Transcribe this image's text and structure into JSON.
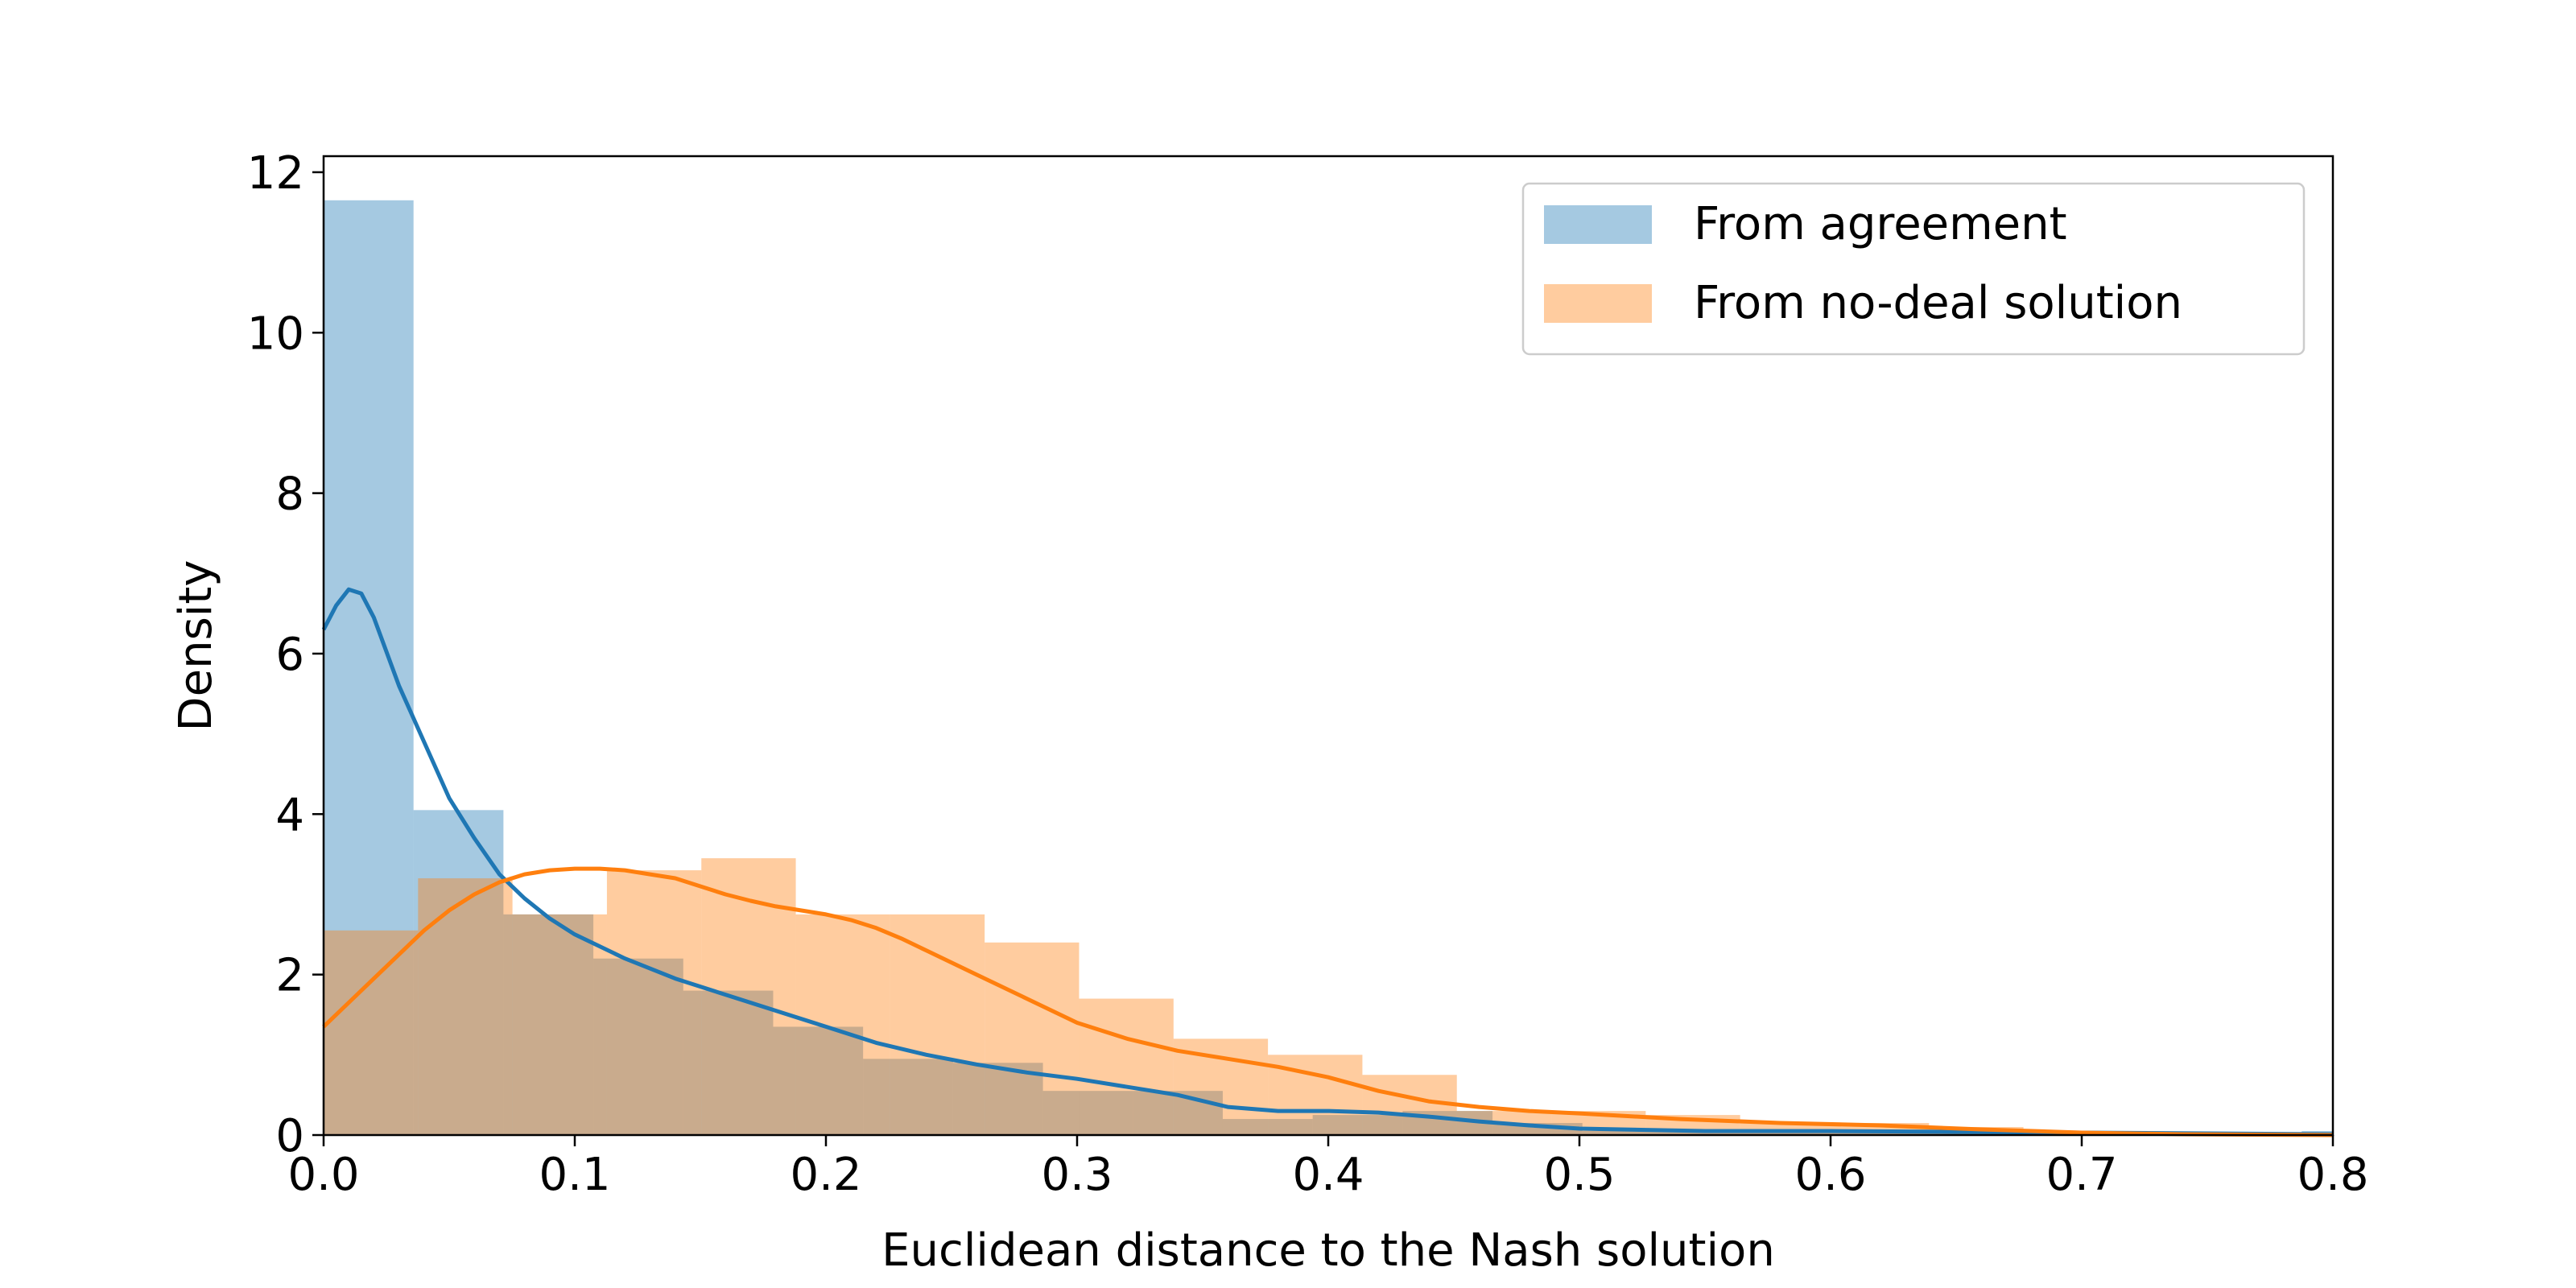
{
  "chart_data": {
    "type": "histogram+kde",
    "title": "",
    "xlabel": "Euclidean distance to the Nash solution",
    "ylabel": "Density",
    "xlim": [
      0,
      0.8
    ],
    "ylim": [
      0,
      12.2
    ],
    "xticks": [
      "0.0",
      "0.1",
      "0.2",
      "0.3",
      "0.4",
      "0.5",
      "0.6",
      "0.7",
      "0.8"
    ],
    "yticks": [
      "0",
      "2",
      "4",
      "6",
      "8",
      "10",
      "12"
    ],
    "legend_position": "top-right",
    "series": [
      {
        "name": "From agreement",
        "color": "#1f77b4",
        "bin_width": 0.0358,
        "bins": [
          {
            "x0": 0.0,
            "density": 11.65
          },
          {
            "x0": 0.0358,
            "density": 4.05
          },
          {
            "x0": 0.0716,
            "density": 2.75
          },
          {
            "x0": 0.1074,
            "density": 2.2
          },
          {
            "x0": 0.1432,
            "density": 1.8
          },
          {
            "x0": 0.179,
            "density": 1.35
          },
          {
            "x0": 0.2148,
            "density": 0.95
          },
          {
            "x0": 0.2506,
            "density": 0.9
          },
          {
            "x0": 0.2864,
            "density": 0.55
          },
          {
            "x0": 0.3222,
            "density": 0.55
          },
          {
            "x0": 0.358,
            "density": 0.2
          },
          {
            "x0": 0.3938,
            "density": 0.25
          },
          {
            "x0": 0.4296,
            "density": 0.3
          },
          {
            "x0": 0.4654,
            "density": 0.15
          },
          {
            "x0": 0.5012,
            "density": 0.05
          },
          {
            "x0": 0.537,
            "density": 0.05
          },
          {
            "x0": 0.5728,
            "density": 0.05
          },
          {
            "x0": 0.6086,
            "density": 0.05
          },
          {
            "x0": 0.6444,
            "density": 0.02
          },
          {
            "x0": 0.6802,
            "density": 0.02
          },
          {
            "x0": 0.716,
            "density": 0.02
          },
          {
            "x0": 0.7518,
            "density": 0.02
          },
          {
            "x0": 0.7876,
            "density": 0.05
          }
        ],
        "kde": [
          [
            0.0,
            6.3
          ],
          [
            0.005,
            6.6
          ],
          [
            0.01,
            6.8
          ],
          [
            0.015,
            6.75
          ],
          [
            0.02,
            6.45
          ],
          [
            0.03,
            5.6
          ],
          [
            0.04,
            4.9
          ],
          [
            0.05,
            4.2
          ],
          [
            0.06,
            3.7
          ],
          [
            0.07,
            3.25
          ],
          [
            0.08,
            2.95
          ],
          [
            0.09,
            2.7
          ],
          [
            0.1,
            2.5
          ],
          [
            0.12,
            2.2
          ],
          [
            0.14,
            1.95
          ],
          [
            0.16,
            1.75
          ],
          [
            0.18,
            1.55
          ],
          [
            0.2,
            1.35
          ],
          [
            0.22,
            1.15
          ],
          [
            0.24,
            1.0
          ],
          [
            0.26,
            0.88
          ],
          [
            0.28,
            0.78
          ],
          [
            0.3,
            0.7
          ],
          [
            0.32,
            0.6
          ],
          [
            0.34,
            0.5
          ],
          [
            0.36,
            0.35
          ],
          [
            0.38,
            0.3
          ],
          [
            0.4,
            0.3
          ],
          [
            0.42,
            0.28
          ],
          [
            0.44,
            0.23
          ],
          [
            0.46,
            0.17
          ],
          [
            0.48,
            0.12
          ],
          [
            0.5,
            0.08
          ],
          [
            0.55,
            0.05
          ],
          [
            0.6,
            0.05
          ],
          [
            0.65,
            0.04
          ],
          [
            0.7,
            0.03
          ],
          [
            0.75,
            0.02
          ],
          [
            0.8,
            0.01
          ]
        ]
      },
      {
        "name": "From no-deal solution",
        "color": "#ff7f0e",
        "bin_width": 0.0376,
        "bins": [
          {
            "x0": 0.0,
            "density": 2.55
          },
          {
            "x0": 0.0376,
            "density": 3.2
          },
          {
            "x0": 0.0752,
            "density": 2.75
          },
          {
            "x0": 0.1128,
            "density": 3.3
          },
          {
            "x0": 0.1504,
            "density": 3.45
          },
          {
            "x0": 0.188,
            "density": 2.75
          },
          {
            "x0": 0.2256,
            "density": 2.75
          },
          {
            "x0": 0.2632,
            "density": 2.4
          },
          {
            "x0": 0.3008,
            "density": 1.7
          },
          {
            "x0": 0.3384,
            "density": 1.2
          },
          {
            "x0": 0.376,
            "density": 1.0
          },
          {
            "x0": 0.4136,
            "density": 0.75
          },
          {
            "x0": 0.4512,
            "density": 0.3
          },
          {
            "x0": 0.4888,
            "density": 0.3
          },
          {
            "x0": 0.5264,
            "density": 0.25
          },
          {
            "x0": 0.564,
            "density": 0.15
          },
          {
            "x0": 0.6016,
            "density": 0.15
          },
          {
            "x0": 0.6392,
            "density": 0.1
          },
          {
            "x0": 0.6768,
            "density": 0.05
          },
          {
            "x0": 0.7144,
            "density": 0.03
          },
          {
            "x0": 0.752,
            "density": 0.02
          }
        ],
        "kde": [
          [
            0.0,
            1.35
          ],
          [
            0.01,
            1.65
          ],
          [
            0.02,
            1.95
          ],
          [
            0.03,
            2.25
          ],
          [
            0.04,
            2.55
          ],
          [
            0.05,
            2.8
          ],
          [
            0.06,
            3.0
          ],
          [
            0.07,
            3.15
          ],
          [
            0.08,
            3.25
          ],
          [
            0.09,
            3.3
          ],
          [
            0.1,
            3.32
          ],
          [
            0.11,
            3.32
          ],
          [
            0.12,
            3.3
          ],
          [
            0.13,
            3.25
          ],
          [
            0.14,
            3.2
          ],
          [
            0.15,
            3.1
          ],
          [
            0.16,
            3.0
          ],
          [
            0.17,
            2.92
          ],
          [
            0.18,
            2.85
          ],
          [
            0.19,
            2.8
          ],
          [
            0.2,
            2.75
          ],
          [
            0.21,
            2.68
          ],
          [
            0.22,
            2.58
          ],
          [
            0.23,
            2.45
          ],
          [
            0.24,
            2.3
          ],
          [
            0.26,
            2.0
          ],
          [
            0.28,
            1.7
          ],
          [
            0.3,
            1.4
          ],
          [
            0.32,
            1.2
          ],
          [
            0.34,
            1.05
          ],
          [
            0.36,
            0.95
          ],
          [
            0.38,
            0.85
          ],
          [
            0.4,
            0.72
          ],
          [
            0.42,
            0.55
          ],
          [
            0.44,
            0.42
          ],
          [
            0.46,
            0.35
          ],
          [
            0.48,
            0.3
          ],
          [
            0.5,
            0.27
          ],
          [
            0.54,
            0.2
          ],
          [
            0.58,
            0.15
          ],
          [
            0.62,
            0.12
          ],
          [
            0.66,
            0.07
          ],
          [
            0.7,
            0.03
          ],
          [
            0.74,
            0.01
          ],
          [
            0.8,
            0.0
          ]
        ]
      }
    ]
  }
}
